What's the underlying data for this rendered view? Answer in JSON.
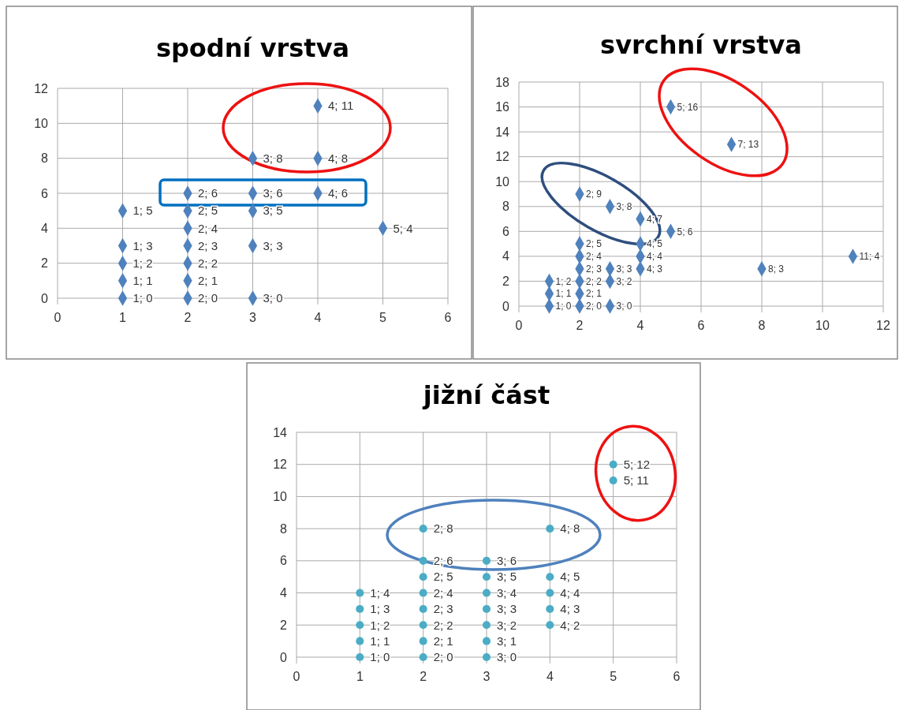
{
  "chart_data": [
    {
      "type": "scatter",
      "title": "spodní vrstva",
      "color": "#4f81bd",
      "marker": "diamond",
      "grid": true,
      "xlim": [
        0,
        6
      ],
      "xticks": [
        0,
        1,
        2,
        3,
        4,
        5,
        6
      ],
      "ylim": [
        0,
        12
      ],
      "yticks": [
        0,
        2,
        4,
        6,
        8,
        10,
        12
      ],
      "x": [
        1,
        1,
        1,
        1,
        1,
        2,
        2,
        2,
        2,
        2,
        2,
        2,
        3,
        3,
        3,
        3,
        3,
        4,
        4,
        4,
        5
      ],
      "values": [
        0,
        1,
        2,
        3,
        5,
        0,
        1,
        2,
        3,
        4,
        5,
        6,
        0,
        3,
        5,
        6,
        8,
        6,
        8,
        11,
        4
      ],
      "value_labels": [
        "1; 0",
        "1; 1",
        "1; 2",
        "1; 3",
        "1; 5",
        "2; 0",
        "2; 1",
        "2; 2",
        "2; 3",
        "2; 4",
        "2; 5",
        "2; 6",
        "3; 0",
        "3; 3",
        "3; 5",
        "3; 6",
        "3; 8",
        "4; 6",
        "4; 8",
        "4; 11",
        "5; 4"
      ]
    },
    {
      "type": "scatter",
      "title": "svrchní vrstva",
      "color": "#4f81bd",
      "marker": "diamond",
      "grid": true,
      "xlim": [
        0,
        12
      ],
      "xticks": [
        0,
        2,
        4,
        6,
        8,
        10,
        12
      ],
      "ylim": [
        0,
        18
      ],
      "yticks": [
        0,
        2,
        4,
        6,
        8,
        10,
        12,
        14,
        16,
        18
      ],
      "x": [
        1,
        1,
        1,
        2,
        2,
        2,
        2,
        2,
        2,
        2,
        3,
        3,
        3,
        3,
        4,
        4,
        4,
        4,
        5,
        5,
        7,
        8,
        11
      ],
      "values": [
        0,
        1,
        2,
        0,
        1,
        2,
        3,
        4,
        5,
        9,
        0,
        2,
        3,
        8,
        3,
        4,
        5,
        7,
        6,
        16,
        13,
        3,
        4
      ],
      "value_labels": [
        "1; 0",
        "1; 1",
        "1; 2",
        "2; 0",
        "2; 1",
        "2; 2",
        "2; 3",
        "2; 4",
        "2; 5",
        "2; 9",
        "3; 0",
        "3; 2",
        "3; 3",
        "3; 8",
        "4; 3",
        "4; 4",
        "4; 5",
        "4; 7",
        "5; 6",
        "5; 16",
        "7; 13",
        "8; 3",
        "11; 4"
      ]
    },
    {
      "type": "scatter",
      "title": "jižní část",
      "color": "#4bacc6",
      "marker": "circle",
      "grid": true,
      "xlim": [
        0,
        6
      ],
      "xticks": [
        0,
        1,
        2,
        3,
        4,
        5,
        6
      ],
      "ylim": [
        0,
        14
      ],
      "yticks": [
        0,
        2,
        4,
        6,
        8,
        10,
        12,
        14
      ],
      "x": [
        1,
        1,
        1,
        1,
        1,
        2,
        2,
        2,
        2,
        2,
        2,
        2,
        2,
        3,
        3,
        3,
        3,
        3,
        3,
        3,
        4,
        4,
        4,
        4,
        4,
        5,
        5
      ],
      "values": [
        0,
        1,
        2,
        3,
        4,
        0,
        1,
        2,
        3,
        4,
        5,
        6,
        8,
        0,
        1,
        2,
        3,
        4,
        5,
        6,
        2,
        3,
        4,
        5,
        8,
        11,
        12
      ],
      "value_labels": [
        "1; 0",
        "1; 1",
        "1; 2",
        "1; 3",
        "1; 4",
        "2; 0",
        "2; 1",
        "2; 2",
        "2; 3",
        "2; 4",
        "2; 5",
        "2; 6",
        "2; 8",
        "3; 0",
        "3; 1",
        "3; 2",
        "3; 3",
        "3; 4",
        "3; 5",
        "3; 6",
        "4; 2",
        "4; 3",
        "4; 4",
        "4; 5",
        "4; 8",
        "5; 11",
        "5; 12"
      ]
    }
  ]
}
